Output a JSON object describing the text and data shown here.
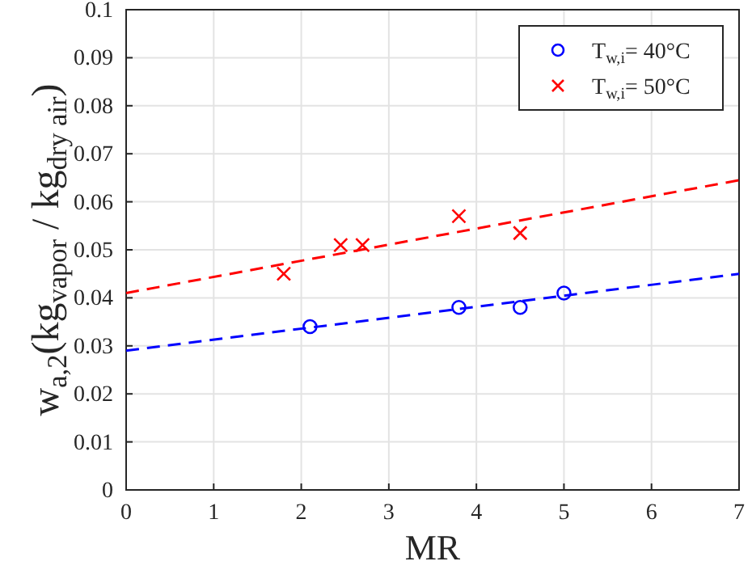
{
  "chart_data": {
    "type": "scatter",
    "xlabel": "MR",
    "ylabel": "w$_{a,2}$(kg$_{vapor}$ / kg$_{dry air}$)",
    "xlim": [
      0,
      7
    ],
    "xticks": [
      0,
      1,
      2,
      3,
      4,
      5,
      6,
      7
    ],
    "ylim": [
      0,
      0.1
    ],
    "yticks": [
      0,
      0.01,
      0.02,
      0.03,
      0.04,
      0.05,
      0.06,
      0.07,
      0.08,
      0.09,
      0.1
    ],
    "grid": true,
    "legend": "top right",
    "series": [
      {
        "name": "T$_{w,i}$= 40°C",
        "marker": "circle",
        "color": "#0000ff",
        "x": [
          2.1,
          3.8,
          4.5,
          5.0
        ],
        "values": [
          0.034,
          0.038,
          0.038,
          0.041
        ]
      },
      {
        "name": "T$_{w,i}$= 50°C",
        "marker": "cross",
        "color": "#ff0000",
        "x": [
          1.8,
          2.45,
          2.7,
          3.8,
          4.5
        ],
        "values": [
          0.045,
          0.051,
          0.051,
          0.057,
          0.0535
        ]
      },
      {
        "type": "line",
        "line_style": "dashed",
        "marker": "none",
        "color": "#0000ff",
        "x": [
          0,
          7
        ],
        "values": [
          0.029,
          0.045
        ]
      },
      {
        "type": "line",
        "line_style": "dashed",
        "marker": "none",
        "color": "#ff0000",
        "x": [
          0,
          7
        ],
        "values": [
          0.041,
          0.0645
        ]
      }
    ]
  }
}
